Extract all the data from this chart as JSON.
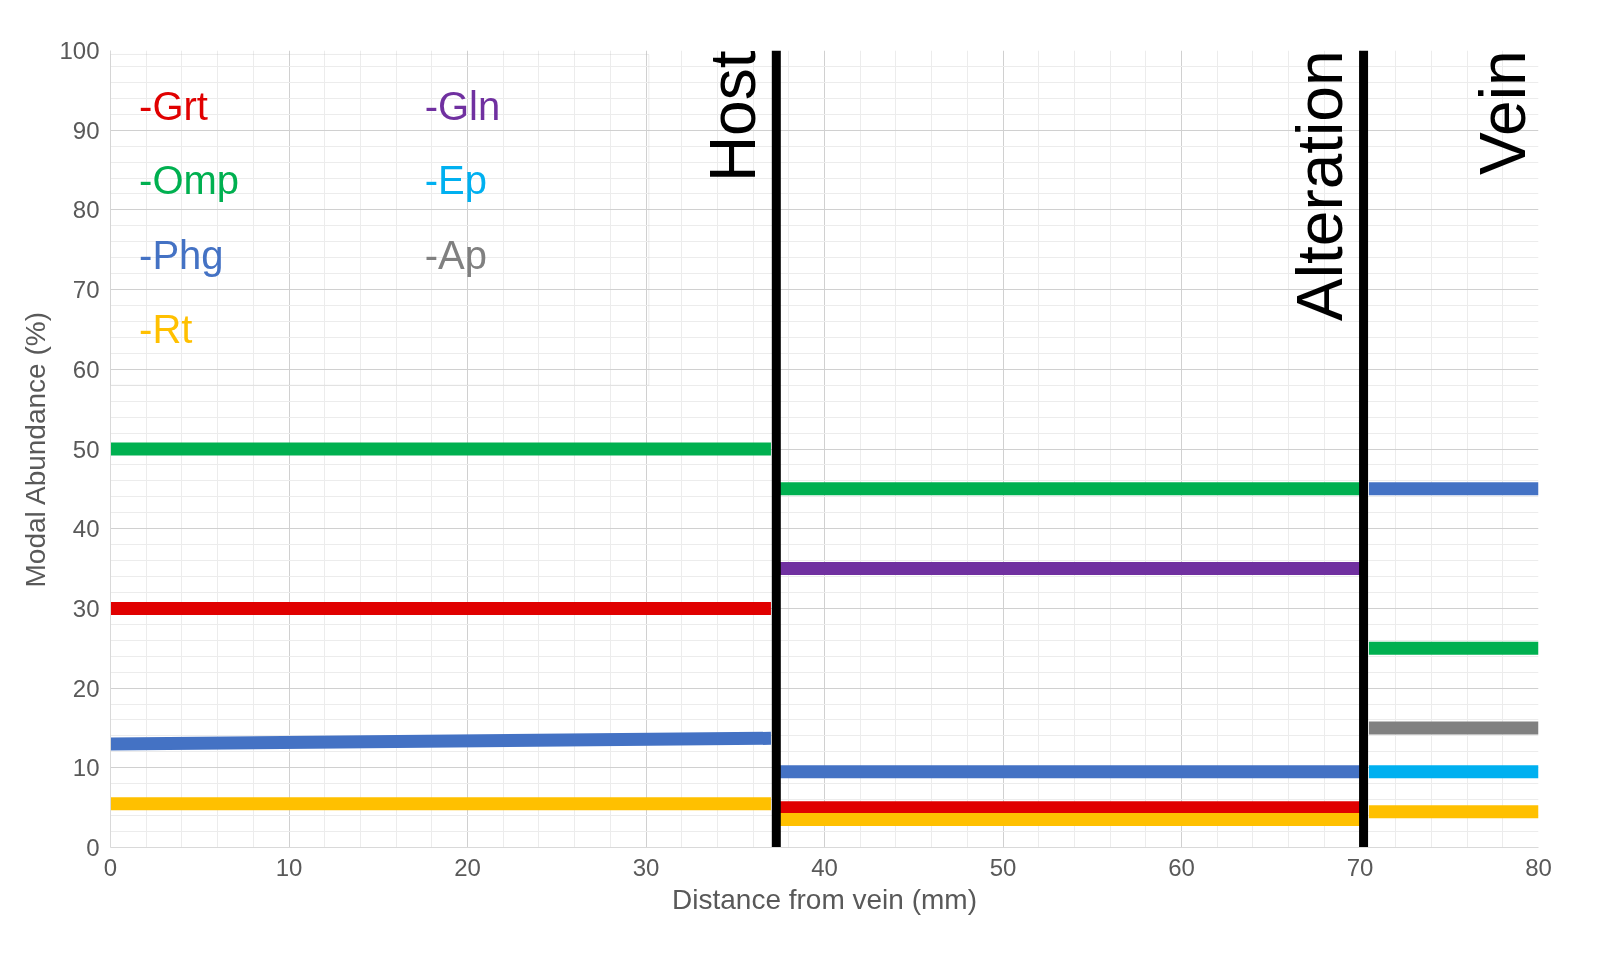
{
  "chart_data": {
    "type": "line",
    "xlabel": "Distance from vein (mm)",
    "ylabel": "Modal Abundance (%)",
    "xlim": [
      0,
      80
    ],
    "ylim": [
      0,
      100
    ],
    "xticks": [
      0,
      10,
      20,
      30,
      40,
      50,
      60,
      70,
      80
    ],
    "yticks": [
      0,
      10,
      20,
      30,
      40,
      50,
      60,
      70,
      80,
      90,
      100
    ],
    "grid": true,
    "legend": "top left",
    "marker": "none",
    "line_style": "solid",
    "series": [
      {
        "name": "-Grt",
        "color": "#e00000",
        "x": [
          0,
          37
        ],
        "values": [
          30,
          30
        ]
      },
      {
        "name": "-Omp",
        "color": "#00b050",
        "x": [
          0,
          37
        ],
        "values": [
          50,
          50
        ]
      },
      {
        "name": "-Phg",
        "color": "#4472c4",
        "x": [
          0,
          37
        ],
        "values": [
          13,
          13.7
        ]
      },
      {
        "name": "-Rt",
        "color": "#ffc000",
        "x": [
          0,
          37
        ],
        "values": [
          5.5,
          5.5
        ]
      },
      {
        "name": "-Gln",
        "color": "#7030a0",
        "x": [
          37.5,
          70
        ],
        "values": [
          35,
          35
        ]
      },
      {
        "name": "-Ep",
        "color": "#00b0f0",
        "x": [
          70.5,
          80
        ],
        "values": [
          9.5,
          9.5
        ]
      },
      {
        "name": "-Ap",
        "color": "#808080",
        "x": [
          70.5,
          80
        ],
        "values": [
          15,
          15
        ]
      },
      {
        "color": "#e00000",
        "x": [
          37.5,
          70
        ],
        "values": [
          5,
          5
        ]
      },
      {
        "color": "#00b050",
        "x": [
          37.5,
          70
        ],
        "values": [
          45,
          45
        ]
      },
      {
        "color": "#4472c4",
        "x": [
          37.5,
          70
        ],
        "values": [
          9.5,
          9.5
        ]
      },
      {
        "color": "#ffc000",
        "x": [
          37.5,
          70
        ],
        "values": [
          3.5,
          3.5
        ]
      },
      {
        "color": "#00b050",
        "x": [
          70.5,
          80
        ],
        "values": [
          25,
          25
        ]
      },
      {
        "color": "#4472c4",
        "x": [
          70.5,
          80
        ],
        "values": [
          45,
          45
        ]
      },
      {
        "color": "#ffc000",
        "x": [
          70.5,
          80
        ],
        "values": [
          4.5,
          4.5
        ]
      }
    ],
    "ref_lines": [
      {
        "axis": "x",
        "value": 37.3,
        "label": "Host",
        "color": "#000000"
      },
      {
        "axis": "x",
        "value": 70.2,
        "label": "Alteration",
        "color": "#000000"
      }
    ],
    "annotations": [
      "Vein"
    ]
  }
}
